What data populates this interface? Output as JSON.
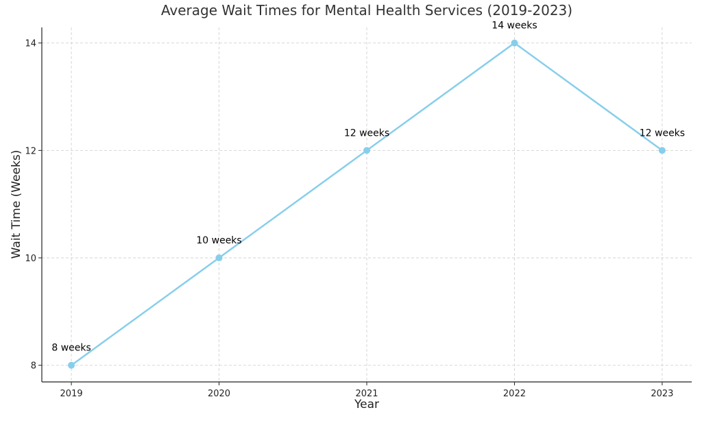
{
  "chart_data": {
    "type": "line",
    "title": "Average Wait Times for Mental Health Services (2019-2023)",
    "xlabel": "Year",
    "ylabel": "Wait Time (Weeks)",
    "x": [
      2019,
      2020,
      2021,
      2022,
      2023
    ],
    "xtick_labels": [
      "2019",
      "2020",
      "2021",
      "2022",
      "2023"
    ],
    "ytick_values": [
      8,
      10,
      12,
      14
    ],
    "ytick_labels": [
      "8",
      "10",
      "12",
      "14"
    ],
    "series": [
      {
        "values": [
          8,
          10,
          12,
          14,
          12
        ],
        "color": "#87CEEB",
        "marker": "circle"
      }
    ],
    "data_labels": [
      "8 weeks",
      "10 weeks",
      "12 weeks",
      "14 weeks",
      "12 weeks"
    ],
    "xlim": [
      2018.8,
      2023.2
    ],
    "ylim": [
      7.69,
      14.29
    ],
    "grid": true
  }
}
